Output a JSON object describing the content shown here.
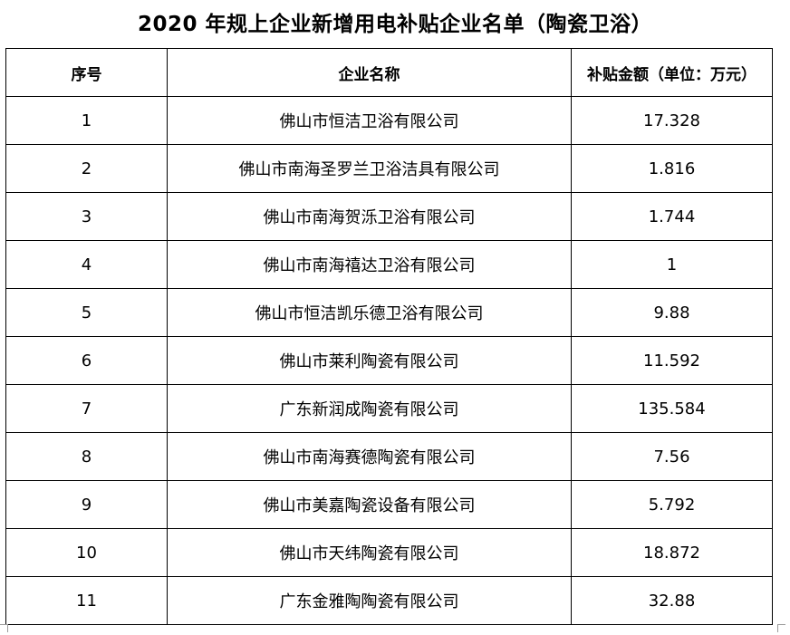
{
  "title": "2020 年规上企业新增用电补贴企业名单（陶瓷卫浴）",
  "table": {
    "headers": {
      "index": "序号",
      "company": "企业名称",
      "amount": "补贴金额（单位：万元）"
    },
    "rows": [
      {
        "index": "1",
        "company": "佛山市恒洁卫浴有限公司",
        "amount": "17.328"
      },
      {
        "index": "2",
        "company": "佛山市南海圣罗兰卫浴洁具有限公司",
        "amount": "1.816"
      },
      {
        "index": "3",
        "company": "佛山市南海贺泺卫浴有限公司",
        "amount": "1.744"
      },
      {
        "index": "4",
        "company": "佛山市南海禧达卫浴有限公司",
        "amount": "1"
      },
      {
        "index": "5",
        "company": "佛山市恒洁凯乐德卫浴有限公司",
        "amount": "9.88"
      },
      {
        "index": "6",
        "company": "佛山市莱利陶瓷有限公司",
        "amount": "11.592"
      },
      {
        "index": "7",
        "company": "广东新润成陶瓷有限公司",
        "amount": "135.584"
      },
      {
        "index": "8",
        "company": "佛山市南海赛德陶瓷有限公司",
        "amount": "7.56"
      },
      {
        "index": "9",
        "company": "佛山市美嘉陶瓷设备有限公司",
        "amount": "5.792"
      },
      {
        "index": "10",
        "company": "佛山市天纬陶瓷有限公司",
        "amount": "18.872"
      },
      {
        "index": "11",
        "company": "广东金雅陶陶瓷有限公司",
        "amount": "32.88"
      }
    ]
  }
}
